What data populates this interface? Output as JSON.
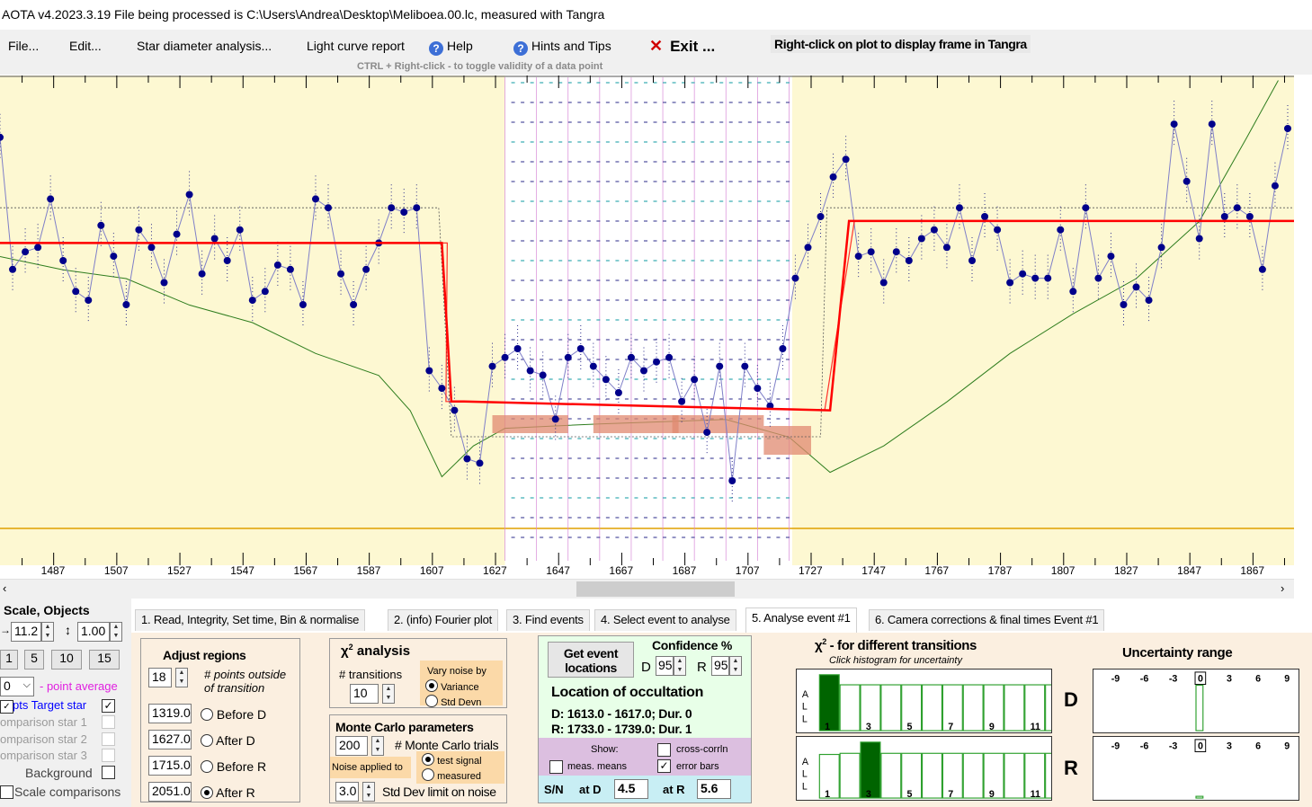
{
  "title": "AOTA v4.2023.3.19    File being processed is C:\\Users\\Andrea\\Desktop\\Meliboea.00.lc, measured with Tangra",
  "menu": {
    "file": "File...",
    "edit": "Edit...",
    "star_diameter": "Star diameter analysis...",
    "light_curve_report": "Light curve report",
    "help": "Help",
    "hints": "Hints and Tips",
    "exit": "Exit ...",
    "help_icon": "question-circle-icon",
    "exit_icon": "red-x-icon"
  },
  "plot_hint": "Right-click on plot to display frame in Tangra",
  "ctrl_hint": "CTRL + Right-click   -   to toggle validity of a data point",
  "colors": {
    "plot_background": "#fdf8d2",
    "event_region": "#ffffff",
    "data_points": "#00008b",
    "model_line": "#ff0000",
    "comparison_line": "#2e7d1e",
    "error_block": "#e08a70",
    "baseline_line": "#e0a000"
  },
  "chart_data": {
    "type": "line",
    "xlabel": "",
    "ylabel": "",
    "x_tick_labels": [
      "1487",
      "1507",
      "1527",
      "1547",
      "1567",
      "1587",
      "1607",
      "1627",
      "1647",
      "1667",
      "1687",
      "1707",
      "1727",
      "1747",
      "1767",
      "1787",
      "1807",
      "1827",
      "1847",
      "1867"
    ],
    "xlim": [
      1470,
      1880
    ],
    "series": [
      {
        "type": "points",
        "x": [
          1470,
          1474,
          1478,
          1482,
          1486,
          1490,
          1494,
          1498,
          1502,
          1506,
          1510,
          1514,
          1518,
          1522,
          1526,
          1530,
          1534,
          1538,
          1542,
          1546,
          1550,
          1554,
          1558,
          1562,
          1566,
          1570,
          1574,
          1578,
          1582,
          1586,
          1590,
          1594,
          1598,
          1602,
          1606,
          1610,
          1614,
          1618,
          1622,
          1626,
          1630,
          1634,
          1638,
          1642,
          1646,
          1650,
          1654,
          1658,
          1662,
          1666,
          1670,
          1674,
          1678,
          1682,
          1686,
          1690,
          1694,
          1698,
          1702,
          1706,
          1710,
          1714,
          1718,
          1722,
          1726,
          1730,
          1734,
          1738,
          1742,
          1746,
          1750,
          1754,
          1758,
          1762,
          1766,
          1770,
          1774,
          1778,
          1782,
          1786,
          1790,
          1794,
          1798,
          1802,
          1806,
          1810,
          1814,
          1818,
          1822,
          1826,
          1830,
          1834,
          1838,
          1842,
          1846,
          1850,
          1854,
          1858,
          1862,
          1866,
          1870,
          1874,
          1878
        ],
        "y": [
          0.88,
          0.58,
          0.62,
          0.63,
          0.74,
          0.6,
          0.53,
          0.51,
          0.68,
          0.61,
          0.5,
          0.67,
          0.63,
          0.55,
          0.66,
          0.75,
          0.57,
          0.65,
          0.6,
          0.67,
          0.51,
          0.53,
          0.59,
          0.58,
          0.5,
          0.74,
          0.72,
          0.57,
          0.5,
          0.58,
          0.64,
          0.72,
          0.71,
          0.72,
          0.35,
          0.31,
          0.26,
          0.15,
          0.14,
          0.36,
          0.38,
          0.4,
          0.35,
          0.34,
          0.24,
          0.38,
          0.4,
          0.36,
          0.33,
          0.3,
          0.38,
          0.35,
          0.37,
          0.38,
          0.28,
          0.33,
          0.21,
          0.36,
          0.1,
          0.36,
          0.31,
          0.27,
          0.4,
          0.56,
          0.63,
          0.7,
          0.79,
          0.83,
          0.61,
          0.62,
          0.55,
          0.62,
          0.6,
          0.65,
          0.67,
          0.63,
          0.72,
          0.6,
          0.7,
          0.67,
          0.55,
          0.57,
          0.56,
          0.56,
          0.67,
          0.53,
          0.72,
          0.56,
          0.61,
          0.5,
          0.54,
          0.51,
          0.63,
          0.91,
          0.78,
          0.65,
          0.91,
          0.7,
          0.72,
          0.7,
          0.58,
          0.77,
          0.9
        ]
      },
      {
        "type": "model",
        "x": [
          1470,
          1610,
          1613,
          1617,
          1733,
          1739,
          1880
        ],
        "y": [
          0.64,
          0.64,
          0.28,
          0.28,
          0.26,
          0.69,
          0.69
        ]
      }
    ],
    "grid": true,
    "legend": "none"
  },
  "tabs": [
    {
      "label": "1.  Read, Integrity, Set time, Bin & normalise"
    },
    {
      "label": "2. (info)  Fourier plot"
    },
    {
      "label": "3. Find events"
    },
    {
      "label": "4. Select event to analyse"
    },
    {
      "label": "5. Analyse event #1"
    },
    {
      "label": "6. Camera corrections & final times Event #1"
    }
  ],
  "left": {
    "scale_objects": "Scale,  Objects",
    "scale_value": "11.2",
    "y_scale_value": "1.00",
    "quick_buttons": [
      "1",
      "5",
      "10",
      "15"
    ],
    "point_average_value": "0",
    "point_average_label": "- point average",
    "target_label": "pts  Target star",
    "comp1": "omparison star 1",
    "comp2": "omparison star 2",
    "comp3": "omparison star 3",
    "background": "Background",
    "scale_comparisons": "Scale comparisons"
  },
  "adjust": {
    "title": "Adjust regions",
    "points_value": "18",
    "points_label_1": "# points outside",
    "points_label_2": "of transition",
    "before_d_value": "1319.0",
    "after_d_value": "1627.0",
    "before_r_value": "1715.0",
    "after_r_value": "2051.0",
    "before_d": "Before D",
    "after_d": "After D",
    "before_r": "Before R",
    "after_r": "After R"
  },
  "chi2": {
    "title": " analysis",
    "transitions_label": "# transitions",
    "transitions_value": "10",
    "vary_label": "Vary noise by",
    "variance": "Variance",
    "std_devn": "Std Devn"
  },
  "monte_carlo": {
    "title": "Monte Carlo parameters",
    "trials_value": "200",
    "trials_label": "# Monte Carlo trials",
    "noise_applied": "Noise applied to",
    "test_signal": "test signal",
    "measured": "measured",
    "std_limit_value": "3.0",
    "std_limit_label": "Std Dev limit on noise"
  },
  "location": {
    "get_event_1": "Get event",
    "get_event_2": "locations",
    "confidence_title": "Confidence %",
    "d_label": "D",
    "d_value": "95",
    "r_label": "R",
    "r_value": "95",
    "heading": "Location of occultation",
    "d_result": "D: 1613.0 - 1617.0; Dur. 0",
    "r_result": "R: 1733.0 - 1739.0; Dur. 1",
    "show": "Show:",
    "cross_corr": "cross-corrln",
    "meas_means": "meas. means",
    "error_bars": "error bars",
    "sn_label": "S/N",
    "at_d": "at D",
    "sn_d": "4.5",
    "at_r": "at R",
    "sn_r": "5.6"
  },
  "chi2_transitions": {
    "title": " - for different transitions",
    "subtitle": "Click histogram for uncertainty",
    "all_label": [
      "A",
      "L",
      "L"
    ],
    "x_labels": [
      "1",
      "3",
      "5",
      "7",
      "9",
      "11"
    ],
    "d_values": [
      1.0,
      0.82,
      0.82,
      0.82,
      0.82,
      0.82,
      0.82,
      0.82,
      0.82,
      0.82,
      0.82,
      0.82
    ],
    "r_values": [
      0.78,
      0.8,
      1.0,
      0.8,
      0.8,
      0.8,
      0.8,
      0.8,
      0.8,
      0.8,
      0.8,
      0.8
    ]
  },
  "uncertainty": {
    "title": "Uncertainty range",
    "ticks": [
      "-9",
      "-6",
      "-3",
      "0",
      "3",
      "6",
      "9"
    ],
    "d_label": "D",
    "r_label": "R"
  }
}
